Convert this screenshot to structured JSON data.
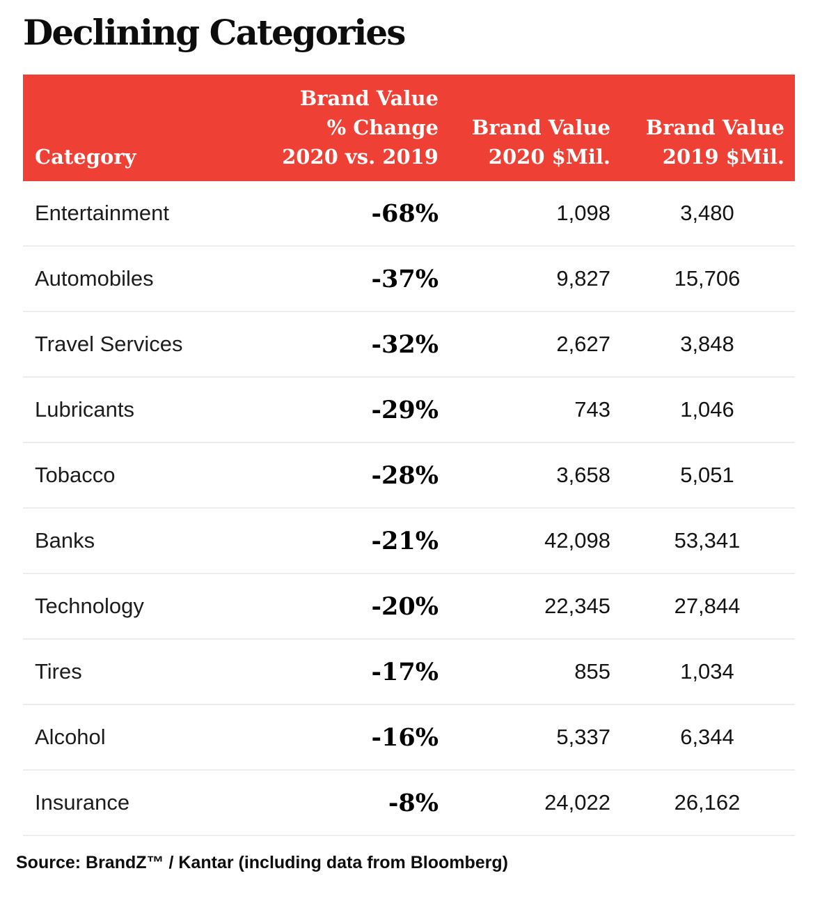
{
  "page": {
    "title": "Declining Categories"
  },
  "colors": {
    "header_bg": "#EE4034",
    "header_text": "#ffffff",
    "divider": "#ececec",
    "text": "#1a1a1a"
  },
  "table": {
    "header": {
      "category": "Category",
      "pct_change": "Brand Value\n% Change\n2020 vs. 2019",
      "bv2020": "Brand Value\n2020 $Mil.",
      "bv2019": "Brand Value\n2019 $Mil."
    },
    "rows": [
      {
        "category": "Entertainment",
        "pct_change": "-68%",
        "bv2020": "1,098",
        "bv2019": "3,480"
      },
      {
        "category": "Automobiles",
        "pct_change": "-37%",
        "bv2020": "9,827",
        "bv2019": "15,706"
      },
      {
        "category": "Travel Services",
        "pct_change": "-32%",
        "bv2020": "2,627",
        "bv2019": "3,848"
      },
      {
        "category": "Lubricants",
        "pct_change": "-29%",
        "bv2020": "743",
        "bv2019": "1,046"
      },
      {
        "category": "Tobacco",
        "pct_change": "-28%",
        "bv2020": "3,658",
        "bv2019": "5,051"
      },
      {
        "category": "Banks",
        "pct_change": "-21%",
        "bv2020": "42,098",
        "bv2019": "53,341"
      },
      {
        "category": "Technology",
        "pct_change": "-20%",
        "bv2020": "22,345",
        "bv2019": "27,844"
      },
      {
        "category": "Tires",
        "pct_change": "-17%",
        "bv2020": "855",
        "bv2019": "1,034"
      },
      {
        "category": "Alcohol",
        "pct_change": "-16%",
        "bv2020": "5,337",
        "bv2019": "6,344"
      },
      {
        "category": "Insurance",
        "pct_change": "-8%",
        "bv2020": "24,022",
        "bv2019": "26,162"
      }
    ]
  },
  "source": "Source: BrandZ™ / Kantar (including data from Bloomberg)",
  "chart_data": {
    "type": "table",
    "title": "Declining Categories",
    "columns": [
      "Category",
      "Brand Value % Change 2020 vs. 2019",
      "Brand Value 2020 $Mil.",
      "Brand Value 2019 $Mil."
    ],
    "rows": [
      [
        "Entertainment",
        -68,
        1098,
        3480
      ],
      [
        "Automobiles",
        -37,
        9827,
        15706
      ],
      [
        "Travel Services",
        -32,
        2627,
        3848
      ],
      [
        "Lubricants",
        -29,
        743,
        1046
      ],
      [
        "Tobacco",
        -28,
        3658,
        5051
      ],
      [
        "Banks",
        -21,
        42098,
        53341
      ],
      [
        "Technology",
        -20,
        22345,
        27844
      ],
      [
        "Tires",
        -17,
        855,
        1034
      ],
      [
        "Alcohol",
        -16,
        5337,
        6344
      ],
      [
        "Insurance",
        -8,
        24022,
        26162
      ]
    ],
    "source": "Source: BrandZ™ / Kantar (including data from Bloomberg)"
  }
}
